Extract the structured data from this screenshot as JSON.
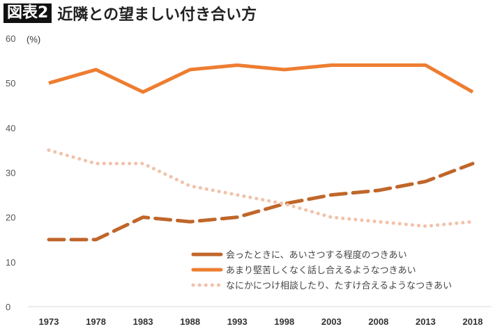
{
  "header": {
    "badge": "図表2",
    "title": "近隣との望ましい付き合い方"
  },
  "chart_data": {
    "type": "line",
    "title": "近隣との望ましい付き合い方",
    "ylabel": "(%)",
    "ylim": [
      0,
      60
    ],
    "yticks": [
      0,
      10,
      20,
      30,
      40,
      50,
      60
    ],
    "categories": [
      "1973",
      "1978",
      "1983",
      "1988",
      "1993",
      "1998",
      "2003",
      "2008",
      "2013",
      "2018"
    ],
    "grid": false,
    "legend_placement": "bottom-right",
    "series": [
      {
        "name": "会ったときに、あいさつする程度のつきあい",
        "style": "dashed",
        "color": "#C0662A",
        "values": [
          15,
          15,
          20,
          19,
          20,
          23,
          25,
          26,
          28,
          32
        ]
      },
      {
        "name": "あまり堅苦しくなく話し合えるようなつきあい",
        "style": "solid",
        "color": "#EE7D31",
        "values": [
          50,
          53,
          48,
          53,
          54,
          53,
          54,
          54,
          54,
          48
        ]
      },
      {
        "name": "なにかにつけ相談したり、たすけ合えるようなつきあい",
        "style": "dotted",
        "color": "#F2C1A9",
        "values": [
          35,
          32,
          32,
          27,
          25,
          23,
          20,
          19,
          18,
          19
        ]
      }
    ]
  }
}
